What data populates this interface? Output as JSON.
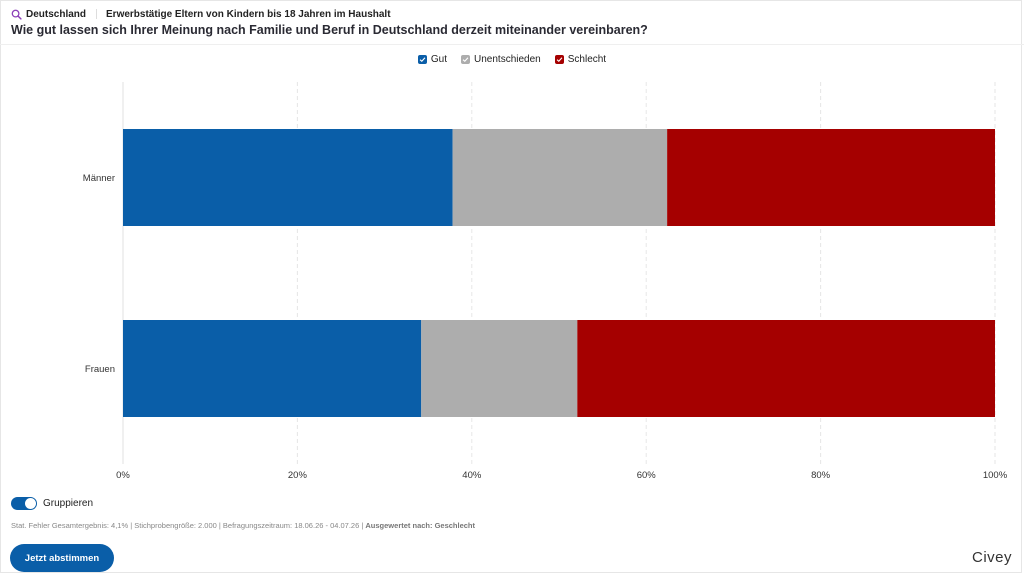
{
  "header": {
    "region": "Deutschland",
    "population": "Erwerbstätige Eltern von Kindern bis 18 Jahren im Haushalt",
    "question": "Wie gut lassen sich Ihrer Meinung nach Familie und Beruf in Deutschland derzeit miteinander vereinbaren?"
  },
  "colors": {
    "gut": "#0a5ea8",
    "unentschieden": "#adadad",
    "schlecht": "#a50000",
    "accent": "#0a5ea8"
  },
  "chart_data": {
    "type": "bar",
    "orientation": "horizontal",
    "stacked": true,
    "categories": [
      "Männer",
      "Frauen"
    ],
    "series": [
      {
        "name": "Gut",
        "values": [
          37.8,
          34.2
        ]
      },
      {
        "name": "Unentschieden",
        "values": [
          24.6,
          17.9
        ]
      },
      {
        "name": "Schlecht",
        "values": [
          37.6,
          47.9
        ]
      }
    ],
    "xlim": [
      0,
      100
    ],
    "x_ticks": [
      "0%",
      "20%",
      "40%",
      "60%",
      "80%",
      "100%"
    ],
    "grid": true,
    "legend_position": "top-center"
  },
  "controls": {
    "group_label": "Gruppieren",
    "group_on": true
  },
  "footer": {
    "stats_text": "Stat. Fehler Gesamtergebnis: 4,1% | Stichprobengröße: 2.000 | Befragungszeitraum: 18.06.26 - 04.07.26 | ",
    "analyzed_by": "Ausgewertet nach: Geschlecht",
    "vote_button": "Jetzt abstimmen",
    "brand": "Civey"
  }
}
